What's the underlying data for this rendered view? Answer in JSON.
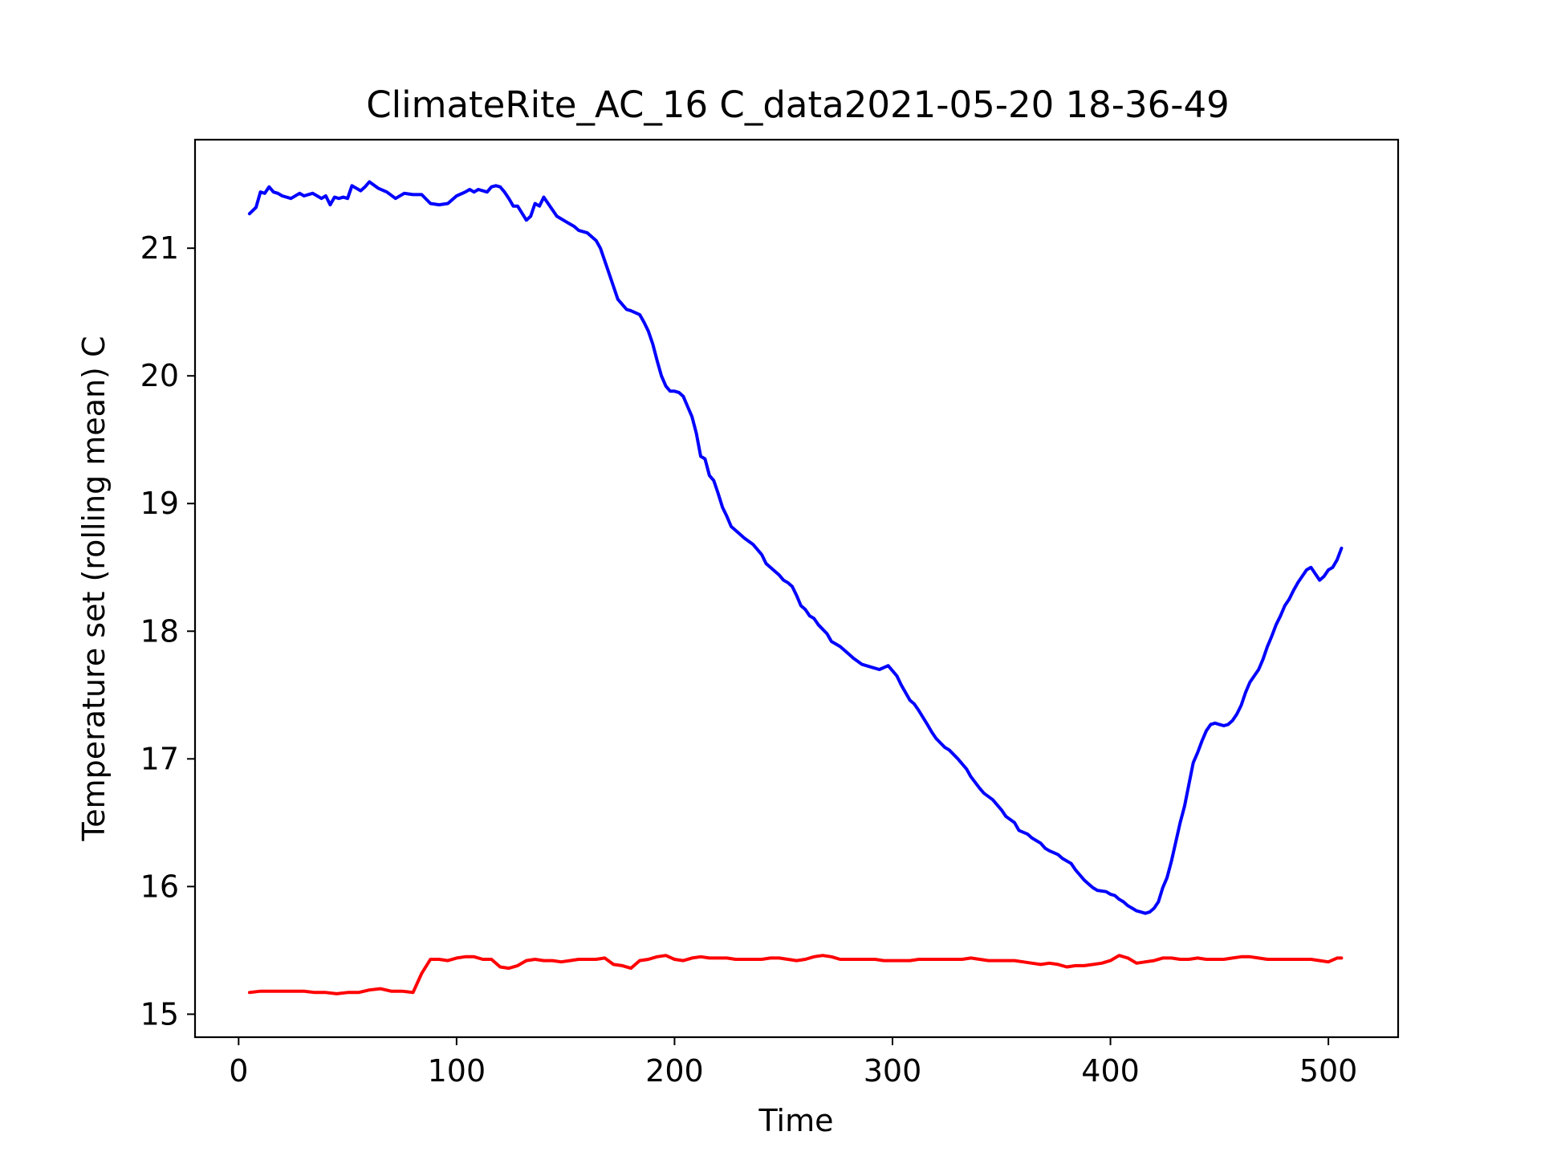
{
  "chart_data": {
    "type": "line",
    "title": "ClimateRite_AC_16 C_data2021-05-20 18-36-49",
    "xlabel": "Time",
    "ylabel": "Temperature set (rolling mean) C",
    "xlim": [
      -20,
      532
    ],
    "ylim": [
      14.82,
      21.85
    ],
    "xticks": [
      0,
      100,
      200,
      300,
      400,
      500
    ],
    "yticks": [
      15,
      16,
      17,
      18,
      19,
      20,
      21
    ],
    "grid": false,
    "legend": "none",
    "series": [
      {
        "color": "#0000ff",
        "x": [
          5,
          8,
          10,
          12,
          14,
          16,
          18,
          20,
          24,
          28,
          30,
          34,
          36,
          38,
          40,
          42,
          44,
          46,
          48,
          50,
          52,
          56,
          58,
          60,
          64,
          68,
          72,
          76,
          80,
          84,
          88,
          92,
          96,
          100,
          104,
          106,
          108,
          110,
          114,
          116,
          118,
          120,
          122,
          124,
          126,
          128,
          132,
          134,
          136,
          138,
          140,
          146,
          150,
          152,
          154,
          156,
          160,
          162,
          164,
          166,
          170,
          172,
          174,
          178,
          180,
          184,
          186,
          188,
          190,
          192,
          194,
          196,
          198,
          200,
          202,
          204,
          206,
          208,
          210,
          212,
          214,
          216,
          218,
          220,
          222,
          224,
          226,
          230,
          232,
          236,
          240,
          242,
          246,
          248,
          250,
          252,
          254,
          256,
          258,
          260,
          262,
          264,
          266,
          270,
          272,
          276,
          280,
          282,
          286,
          290,
          294,
          298,
          300,
          302,
          304,
          308,
          310,
          312,
          316,
          318,
          320,
          324,
          326,
          330,
          334,
          336,
          340,
          342,
          346,
          350,
          352,
          356,
          358,
          362,
          364,
          368,
          370,
          372,
          376,
          378,
          382,
          384,
          386,
          388,
          390,
          392,
          394,
          398,
          400,
          402,
          404,
          406,
          408,
          410,
          412,
          414,
          416,
          418,
          420,
          422,
          424,
          426,
          428,
          430,
          432,
          434,
          436,
          438,
          440,
          442,
          444,
          446,
          448,
          450,
          452,
          454,
          456,
          458,
          460,
          462,
          464,
          466,
          468,
          470,
          472,
          474,
          476,
          478,
          480,
          482,
          484,
          486,
          488,
          490,
          492,
          494,
          496,
          498,
          500,
          502,
          504,
          506
        ],
        "y": [
          21.27,
          21.32,
          21.44,
          21.43,
          21.48,
          21.44,
          21.43,
          21.41,
          21.39,
          21.43,
          21.41,
          21.43,
          21.41,
          21.39,
          21.41,
          21.34,
          21.4,
          21.39,
          21.4,
          21.39,
          21.49,
          21.45,
          21.48,
          21.52,
          21.47,
          21.44,
          21.39,
          21.43,
          21.42,
          21.42,
          21.35,
          21.34,
          21.35,
          21.41,
          21.44,
          21.46,
          21.44,
          21.46,
          21.44,
          21.48,
          21.49,
          21.48,
          21.44,
          21.39,
          21.33,
          21.33,
          21.22,
          21.25,
          21.35,
          21.33,
          21.4,
          21.25,
          21.21,
          21.19,
          21.17,
          21.14,
          21.12,
          21.09,
          21.06,
          21.0,
          20.8,
          20.7,
          20.6,
          20.52,
          20.51,
          20.48,
          20.42,
          20.35,
          20.25,
          20.12,
          20.0,
          19.92,
          19.88,
          19.88,
          19.87,
          19.84,
          19.76,
          19.68,
          19.55,
          19.37,
          19.35,
          19.22,
          19.18,
          19.08,
          18.97,
          18.9,
          18.82,
          18.76,
          18.73,
          18.68,
          18.6,
          18.53,
          18.47,
          18.44,
          18.4,
          18.38,
          18.35,
          18.28,
          18.2,
          18.17,
          18.12,
          18.1,
          18.05,
          17.98,
          17.92,
          17.88,
          17.82,
          17.79,
          17.74,
          17.72,
          17.7,
          17.73,
          17.69,
          17.65,
          17.58,
          17.46,
          17.43,
          17.38,
          17.27,
          17.21,
          17.16,
          17.09,
          17.07,
          17.0,
          16.92,
          16.86,
          16.77,
          16.73,
          16.68,
          16.6,
          16.55,
          16.5,
          16.44,
          16.41,
          16.38,
          16.34,
          16.3,
          16.28,
          16.25,
          16.22,
          16.18,
          16.13,
          16.09,
          16.05,
          16.02,
          15.99,
          15.97,
          15.96,
          15.94,
          15.93,
          15.9,
          15.88,
          15.85,
          15.83,
          15.81,
          15.8,
          15.79,
          15.8,
          15.83,
          15.88,
          15.99,
          16.07,
          16.2,
          16.35,
          16.5,
          16.63,
          16.8,
          16.97,
          17.05,
          17.14,
          17.22,
          17.27,
          17.28,
          17.27,
          17.26,
          17.27,
          17.3,
          17.35,
          17.42,
          17.52,
          17.6,
          17.65,
          17.7,
          17.78,
          17.88,
          17.96,
          18.05,
          18.12,
          18.2,
          18.25,
          18.32,
          18.38,
          18.43,
          18.48,
          18.5,
          18.45,
          18.4,
          18.43,
          18.48,
          18.5,
          18.56,
          18.65
        ]
      },
      {
        "color": "#ff0000",
        "x": [
          5,
          10,
          15,
          20,
          25,
          30,
          35,
          40,
          45,
          50,
          55,
          60,
          65,
          70,
          75,
          80,
          84,
          88,
          92,
          96,
          100,
          104,
          108,
          112,
          116,
          120,
          124,
          128,
          132,
          136,
          140,
          144,
          148,
          152,
          156,
          160,
          164,
          168,
          172,
          176,
          180,
          184,
          188,
          192,
          196,
          200,
          204,
          208,
          212,
          216,
          220,
          224,
          228,
          232,
          236,
          240,
          244,
          248,
          252,
          256,
          260,
          264,
          268,
          272,
          276,
          280,
          284,
          288,
          292,
          296,
          300,
          304,
          308,
          312,
          316,
          320,
          324,
          328,
          332,
          336,
          340,
          344,
          348,
          352,
          356,
          360,
          364,
          368,
          372,
          376,
          380,
          384,
          388,
          392,
          396,
          400,
          404,
          408,
          412,
          416,
          420,
          424,
          428,
          432,
          436,
          440,
          444,
          448,
          452,
          456,
          460,
          464,
          468,
          472,
          476,
          480,
          484,
          488,
          492,
          496,
          500,
          504,
          506
        ],
        "y": [
          15.17,
          15.18,
          15.18,
          15.18,
          15.18,
          15.18,
          15.17,
          15.17,
          15.16,
          15.17,
          15.17,
          15.19,
          15.2,
          15.18,
          15.18,
          15.17,
          15.32,
          15.43,
          15.43,
          15.42,
          15.44,
          15.45,
          15.45,
          15.43,
          15.43,
          15.37,
          15.36,
          15.38,
          15.42,
          15.43,
          15.42,
          15.42,
          15.41,
          15.42,
          15.43,
          15.43,
          15.43,
          15.44,
          15.39,
          15.38,
          15.36,
          15.42,
          15.43,
          15.45,
          15.46,
          15.43,
          15.42,
          15.44,
          15.45,
          15.44,
          15.44,
          15.44,
          15.43,
          15.43,
          15.43,
          15.43,
          15.44,
          15.44,
          15.43,
          15.42,
          15.43,
          15.45,
          15.46,
          15.45,
          15.43,
          15.43,
          15.43,
          15.43,
          15.43,
          15.42,
          15.42,
          15.42,
          15.42,
          15.43,
          15.43,
          15.43,
          15.43,
          15.43,
          15.43,
          15.44,
          15.43,
          15.42,
          15.42,
          15.42,
          15.42,
          15.41,
          15.4,
          15.39,
          15.4,
          15.39,
          15.37,
          15.38,
          15.38,
          15.39,
          15.4,
          15.42,
          15.46,
          15.44,
          15.4,
          15.41,
          15.42,
          15.44,
          15.44,
          15.43,
          15.43,
          15.44,
          15.43,
          15.43,
          15.43,
          15.44,
          15.45,
          15.45,
          15.44,
          15.43,
          15.43,
          15.43,
          15.43,
          15.43,
          15.43,
          15.42,
          15.41,
          15.44,
          15.44
        ]
      }
    ]
  }
}
